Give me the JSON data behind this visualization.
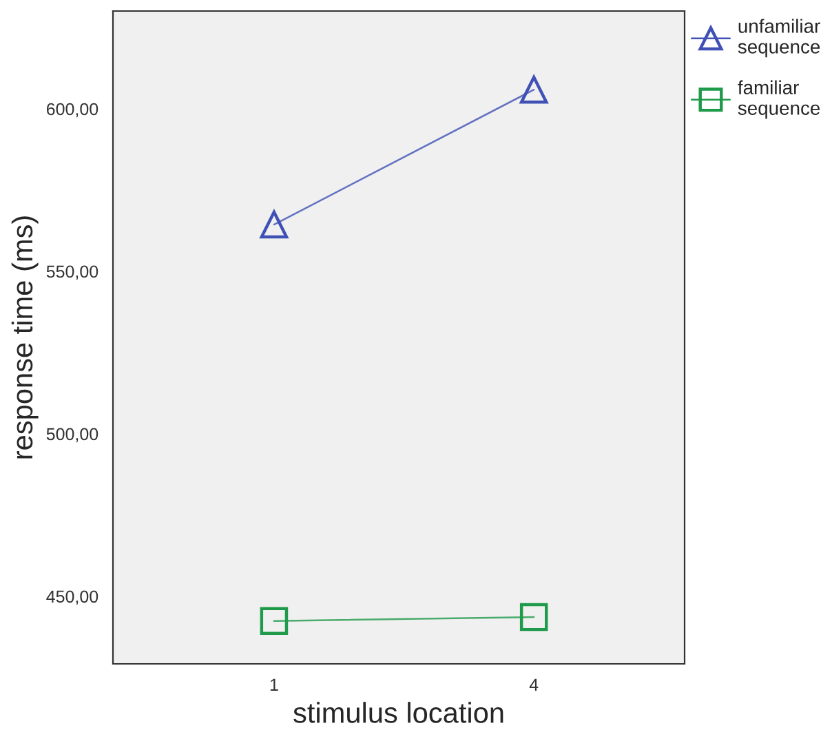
{
  "chart_data": {
    "type": "line",
    "xlabel": "stimulus location",
    "ylabel": "response time (ms)",
    "categories": [
      "1",
      "4"
    ],
    "series": [
      {
        "name": "unfamiliar\nsequence",
        "color": "#3f51b5",
        "values": [
          564.4,
          605.9
        ],
        "marker": "triangle"
      },
      {
        "name": "familiar\nsequence",
        "color": "#1f9a4a",
        "values": [
          442.4,
          443.6
        ],
        "marker": "square"
      }
    ],
    "ylim": [
      429.2,
      630.1
    ],
    "yticks": [
      {
        "value": 450,
        "label": "450,00"
      },
      {
        "value": 500,
        "label": "500,00"
      },
      {
        "value": 550,
        "label": "550,00"
      },
      {
        "value": 600,
        "label": "600,00"
      }
    ],
    "grid": false,
    "legend": "top right",
    "line_style": "solid"
  }
}
